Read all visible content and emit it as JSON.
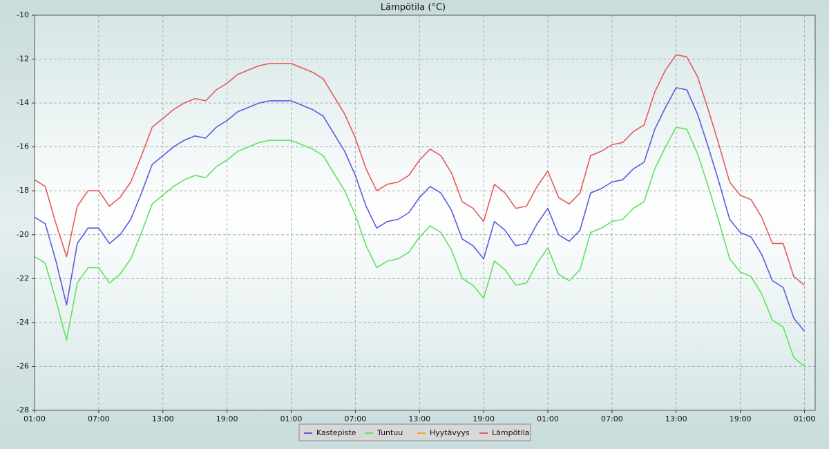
{
  "chart_data": {
    "type": "line",
    "title": "Lämpötila (°C)",
    "x": [
      0,
      1,
      2,
      3,
      4,
      5,
      6,
      7,
      8,
      9,
      10,
      11,
      12,
      13,
      14,
      15,
      16,
      17,
      18,
      19,
      20,
      21,
      22,
      23,
      24,
      25,
      26,
      27,
      28,
      29,
      30,
      31,
      32,
      33,
      34,
      35,
      36,
      37,
      38,
      39,
      40,
      41,
      42,
      43,
      44,
      45,
      46,
      47,
      48,
      49,
      50,
      51,
      52,
      53,
      54,
      55,
      56,
      57,
      58,
      59,
      60,
      61,
      62,
      63,
      64,
      65,
      66,
      67,
      68,
      69,
      70,
      71,
      72
    ],
    "series": [
      {
        "name": "Kastepiste",
        "color": "#5a5adf",
        "values": [
          -19.2,
          -19.5,
          -21.2,
          -23.2,
          -20.4,
          -19.7,
          -19.7,
          -20.4,
          -20.0,
          -19.3,
          -18.1,
          -16.8,
          -16.4,
          -16.0,
          -15.7,
          -15.5,
          -15.6,
          -15.1,
          -14.8,
          -14.4,
          -14.2,
          -14.0,
          -13.9,
          -13.9,
          -13.9,
          -14.1,
          -14.3,
          -14.6,
          -15.4,
          -16.2,
          -17.3,
          -18.7,
          -19.7,
          -19.4,
          -19.3,
          -19.0,
          -18.3,
          -17.8,
          -18.1,
          -18.9,
          -20.2,
          -20.5,
          -21.1,
          -19.4,
          -19.8,
          -20.5,
          -20.4,
          -19.5,
          -18.8,
          -20.0,
          -20.3,
          -19.8,
          -18.1,
          -17.9,
          -17.6,
          -17.5,
          -17.0,
          -16.7,
          -15.2,
          -14.2,
          -13.3,
          -13.4,
          -14.5,
          -16.0,
          -17.6,
          -19.3,
          -19.9,
          -20.1,
          -20.9,
          -22.1,
          -22.4,
          -23.8,
          -24.4
        ]
      },
      {
        "name": "Tuntuu",
        "color": "#5de35d",
        "values": [
          -21.0,
          -21.3,
          -23.0,
          -24.8,
          -22.2,
          -21.5,
          -21.5,
          -22.2,
          -21.8,
          -21.1,
          -19.9,
          -18.6,
          -18.2,
          -17.8,
          -17.5,
          -17.3,
          -17.4,
          -16.9,
          -16.6,
          -16.2,
          -16.0,
          -15.8,
          -15.7,
          -15.7,
          -15.7,
          -15.9,
          -16.1,
          -16.4,
          -17.2,
          -18.0,
          -19.1,
          -20.5,
          -21.5,
          -21.2,
          -21.1,
          -20.8,
          -20.1,
          -19.6,
          -19.9,
          -20.7,
          -22.0,
          -22.3,
          -22.9,
          -21.2,
          -21.6,
          -22.3,
          -22.2,
          -21.3,
          -20.6,
          -21.8,
          -22.1,
          -21.6,
          -19.9,
          -19.7,
          -19.4,
          -19.3,
          -18.8,
          -18.5,
          -17.0,
          -16.0,
          -15.1,
          -15.2,
          -16.3,
          -17.8,
          -19.4,
          -21.1,
          -21.7,
          -21.9,
          -22.7,
          -23.9,
          -24.2,
          -25.6,
          -26.0
        ]
      },
      {
        "name": "Hyytävyys",
        "color": "#f5a623",
        "values": [
          null,
          null,
          null,
          null,
          null,
          null,
          null,
          null,
          null,
          null,
          null,
          null,
          null,
          null,
          null,
          null,
          null,
          null,
          null,
          null,
          null,
          null,
          null,
          null,
          null,
          null,
          null,
          null,
          null,
          null,
          null,
          null,
          null,
          null,
          null,
          null,
          null,
          null,
          null,
          null,
          null,
          null,
          null,
          null,
          null,
          null,
          null,
          null,
          null,
          null,
          null,
          null,
          null,
          null,
          null,
          null,
          null,
          null,
          null,
          null,
          null,
          null,
          null,
          null,
          null,
          null,
          null,
          null,
          null,
          null,
          null,
          null,
          null
        ]
      },
      {
        "name": "Lämpötila",
        "color": "#e55a5a",
        "values": [
          -17.5,
          -17.8,
          -19.5,
          -21.0,
          -18.7,
          -18.0,
          -18.0,
          -18.7,
          -18.3,
          -17.6,
          -16.4,
          -15.1,
          -14.7,
          -14.3,
          -14.0,
          -13.8,
          -13.9,
          -13.4,
          -13.1,
          -12.7,
          -12.5,
          -12.3,
          -12.2,
          -12.2,
          -12.2,
          -12.4,
          -12.6,
          -12.9,
          -13.7,
          -14.5,
          -15.6,
          -17.0,
          -18.0,
          -17.7,
          -17.6,
          -17.3,
          -16.6,
          -16.1,
          -16.4,
          -17.2,
          -18.5,
          -18.8,
          -19.4,
          -17.7,
          -18.1,
          -18.8,
          -18.7,
          -17.8,
          -17.1,
          -18.3,
          -18.6,
          -18.1,
          -16.4,
          -16.2,
          -15.9,
          -15.8,
          -15.3,
          -15.0,
          -13.5,
          -12.5,
          -11.8,
          -11.9,
          -12.8,
          -14.3,
          -15.9,
          -17.6,
          -18.2,
          -18.4,
          -19.2,
          -20.4,
          -20.4,
          -21.9,
          -22.3
        ]
      }
    ],
    "xlim": [
      0,
      73
    ],
    "xticks": [
      {
        "value": 0,
        "label": "01:00"
      },
      {
        "value": 6,
        "label": "07:00"
      },
      {
        "value": 12,
        "label": "13:00"
      },
      {
        "value": 18,
        "label": "19:00"
      },
      {
        "value": 24,
        "label": "01:00"
      },
      {
        "value": 30,
        "label": "07:00"
      },
      {
        "value": 36,
        "label": "13:00"
      },
      {
        "value": 42,
        "label": "19:00"
      },
      {
        "value": 48,
        "label": "01:00"
      },
      {
        "value": 54,
        "label": "07:00"
      },
      {
        "value": 60,
        "label": "13:00"
      },
      {
        "value": 66,
        "label": "19:00"
      },
      {
        "value": 72,
        "label": "01:00"
      }
    ],
    "ylim": [
      -28,
      -10
    ],
    "yticks": [
      -28,
      -26,
      -24,
      -22,
      -20,
      -18,
      -16,
      -14,
      -12,
      -10
    ],
    "grid": true,
    "legend": "bottom"
  }
}
